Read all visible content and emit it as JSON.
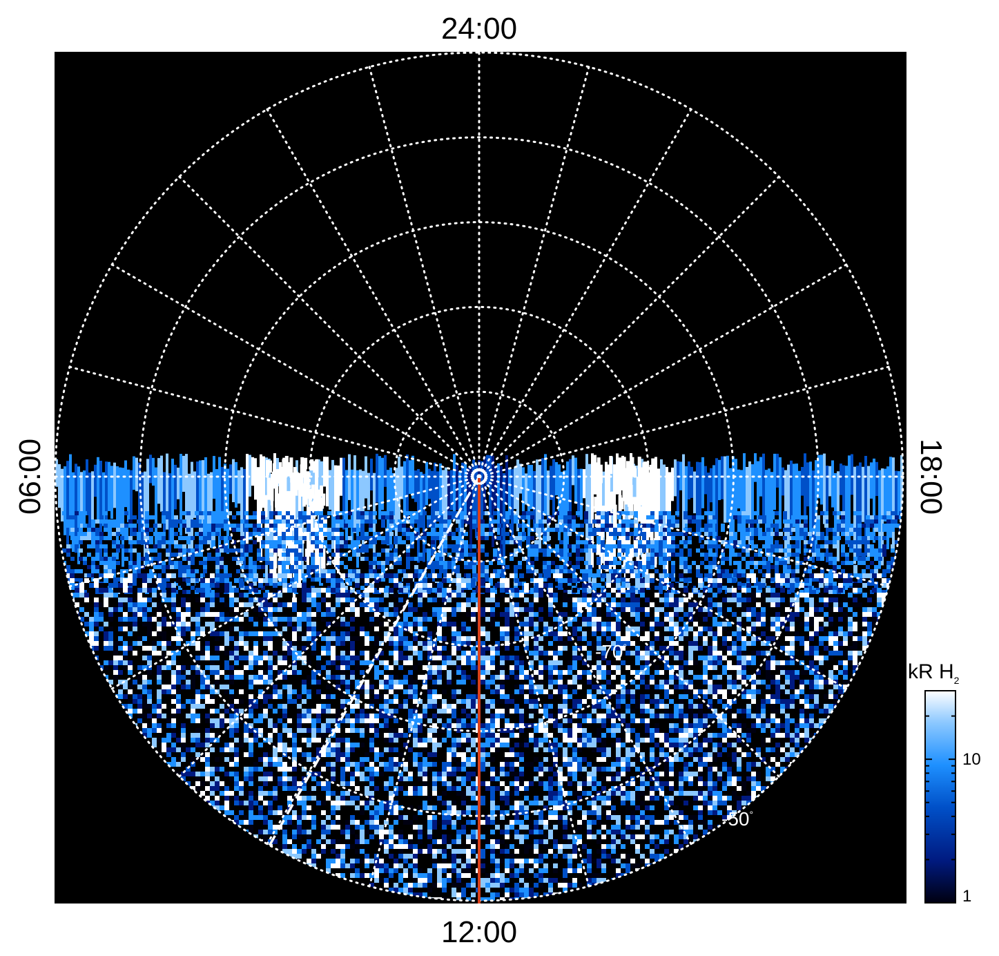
{
  "chart_data": {
    "type": "heatmap",
    "projection": "polar (south pole view, local time vs latitude)",
    "time_labels": {
      "top": "24:00",
      "bottom": "12:00",
      "left": "06:00",
      "right": "18:00"
    },
    "latitude_labels": [
      {
        "value": -70,
        "text": "-70"
      },
      {
        "value": -50,
        "text": "-50"
      }
    ],
    "degree_symbol": "°",
    "latitude_circles_deg": [
      -80,
      -70,
      -60,
      -50,
      -40
    ],
    "meridian_step_hours": 1,
    "colorbar": {
      "title_main": "kR H",
      "title_sub": "2",
      "scale": "log",
      "range": [
        1,
        30
      ],
      "ticks": [
        {
          "value": 10,
          "text": "10"
        },
        {
          "value": 1,
          "text": "1"
        }
      ],
      "colors": [
        "#000010",
        "#001a80",
        "#0050c8",
        "#1e90ff",
        "#8cc8ff",
        "#ffffff"
      ]
    },
    "observation_region": "dayside hemisphere (06:00–12:00–18:00)",
    "features": {
      "auroral_brightenings": [
        "dawn side near 07:30 LT",
        "dusk side near 16:30 LT"
      ],
      "red_meridian": "12:00",
      "dashed_white_meridian": "~10:00"
    },
    "colors": {
      "background": "#000000",
      "grid": "#ffffff",
      "red_line": "#d8401c"
    }
  }
}
